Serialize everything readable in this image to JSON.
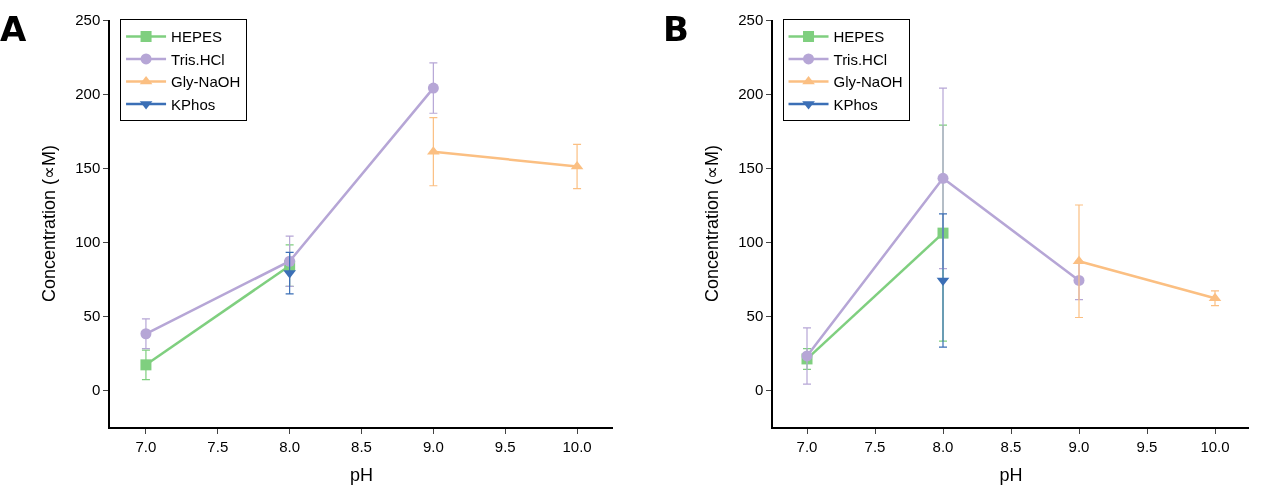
{
  "chart_data": [
    {
      "type": "line",
      "xlabel": "pH",
      "ylabel": "Concentration (∝M)",
      "annotations": [
        "A"
      ],
      "xlim": [
        6.75,
        10.25
      ],
      "ylim": [
        -25,
        250
      ],
      "xticks": [
        {
          "value": 7,
          "label": "7.0"
        },
        {
          "value": 7.5,
          "label": "7.5"
        },
        {
          "value": 8,
          "label": "8.0"
        },
        {
          "value": 8.5,
          "label": "8.5"
        },
        {
          "value": 9,
          "label": "9.0"
        },
        {
          "value": 9.5,
          "label": "9.5"
        },
        {
          "value": 10,
          "label": "10.0"
        }
      ],
      "yticks": [
        0,
        50,
        100,
        150,
        200,
        250
      ],
      "legend": "top left",
      "series": [
        {
          "name": "HEPES",
          "color": "#7fcf7f",
          "marker": "square",
          "x": [
            7,
            8
          ],
          "values": [
            17,
            84
          ],
          "errors": [
            10,
            14
          ]
        },
        {
          "name": "Tris.HCl",
          "color": "#b6a6d6",
          "marker": "circle",
          "x": [
            7,
            8,
            9
          ],
          "values": [
            38,
            87,
            204
          ],
          "errors": [
            10,
            17,
            17
          ]
        },
        {
          "name": "Gly-NaOH",
          "color": "#fbbf82",
          "marker": "triangle",
          "x": [
            9,
            10
          ],
          "values": [
            161,
            151
          ],
          "errors": [
            23,
            15
          ]
        },
        {
          "name": "KPhos",
          "color": "#3b6fb6",
          "marker": "triangle-down",
          "x": [
            8
          ],
          "values": [
            79
          ],
          "errors": [
            14
          ]
        }
      ]
    },
    {
      "type": "line",
      "xlabel": "pH",
      "ylabel": "Concentration (∝M)",
      "annotations": [
        "B"
      ],
      "xlim": [
        6.75,
        10.25
      ],
      "ylim": [
        -25,
        250
      ],
      "xticks": [
        {
          "value": 7,
          "label": "7.0"
        },
        {
          "value": 7.5,
          "label": "7.5"
        },
        {
          "value": 8,
          "label": "8.0"
        },
        {
          "value": 8.5,
          "label": "8.5"
        },
        {
          "value": 9,
          "label": "9.0"
        },
        {
          "value": 9.5,
          "label": "9.5"
        },
        {
          "value": 10,
          "label": "10.0"
        }
      ],
      "yticks": [
        0,
        50,
        100,
        150,
        200,
        250
      ],
      "legend": "top left",
      "series": [
        {
          "name": "HEPES",
          "color": "#7fcf7f",
          "marker": "square",
          "x": [
            7,
            8
          ],
          "values": [
            21,
            106
          ],
          "errors": [
            7,
            73
          ]
        },
        {
          "name": "Tris.HCl",
          "color": "#b6a6d6",
          "marker": "circle",
          "x": [
            7,
            8,
            9
          ],
          "values": [
            23,
            143,
            74
          ],
          "errors": [
            19,
            61,
            13
          ]
        },
        {
          "name": "Gly-NaOH",
          "color": "#fbbf82",
          "marker": "triangle",
          "x": [
            9,
            10
          ],
          "values": [
            87,
            62
          ],
          "errors": [
            38,
            5
          ]
        },
        {
          "name": "KPhos",
          "color": "#3b6fb6",
          "marker": "triangle-down",
          "x": [
            8
          ],
          "values": [
            74
          ],
          "errors": [
            45
          ]
        }
      ]
    }
  ]
}
